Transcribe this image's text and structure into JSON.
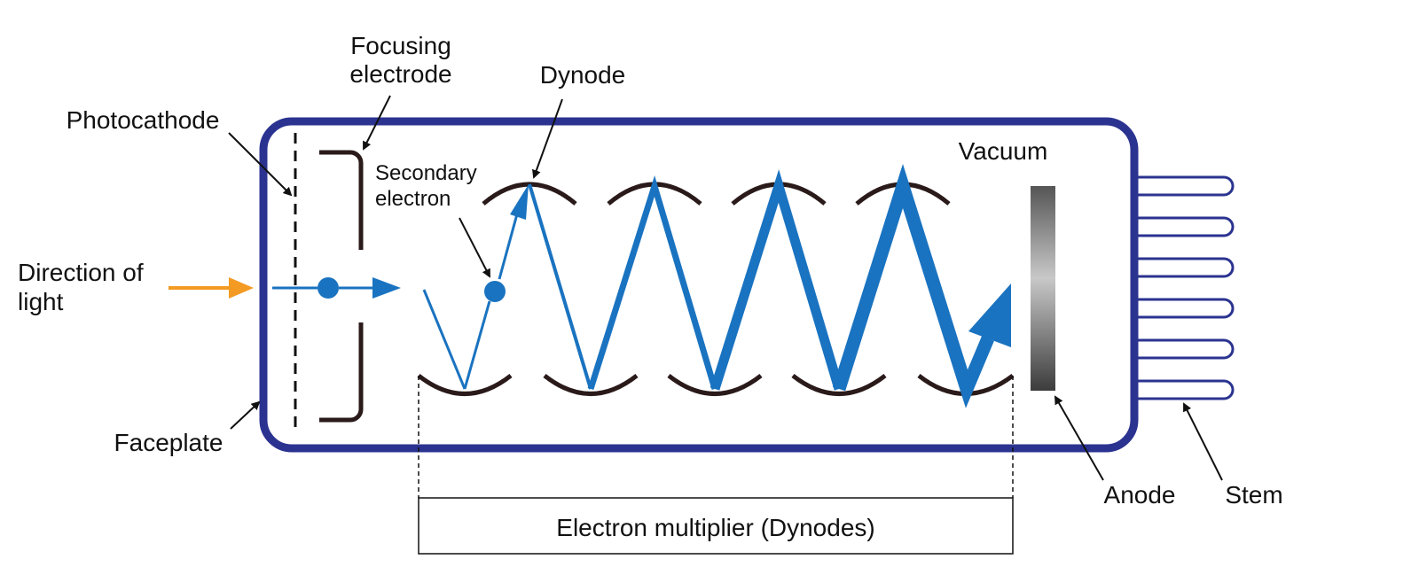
{
  "labels": {
    "focusing_electrode_line1": "Focusing",
    "focusing_electrode_line2": "electrode",
    "dynode": "Dynode",
    "photocathode": "Photocathode",
    "vacuum": "Vacuum",
    "secondary_electron_line1": "Secondary",
    "secondary_electron_line2": "electron",
    "direction_of_light_line1": "Direction of",
    "direction_of_light_line2": "light",
    "faceplate": "Faceplate",
    "anode": "Anode",
    "stem": "Stem",
    "electron_multiplier": "Electron multiplier (Dynodes)"
  },
  "colors": {
    "tube_outline": "#2b3390",
    "electron_path": "#1a73c0",
    "light_arrow": "#f39a22",
    "electrode": "#2a1a1a",
    "pointer": "#111111"
  },
  "icons": {
    "electron": "blue-dot",
    "light": "orange-arrow"
  }
}
